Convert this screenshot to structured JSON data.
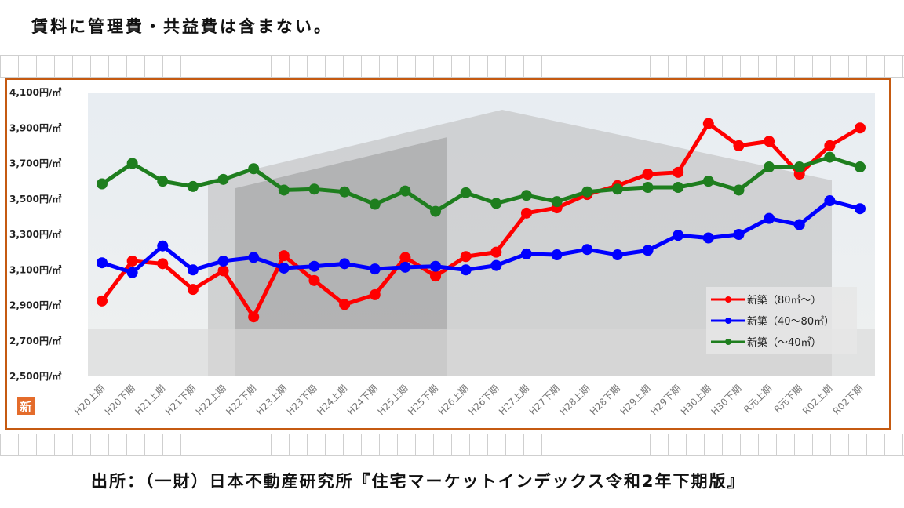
{
  "header": {
    "note": "賃料に管理費・共益費は含まない。"
  },
  "footer": {
    "source": "出所：（一財）日本不動産研究所『住宅マーケットインデックス令和2年下期版』"
  },
  "logo": {
    "char": "新",
    "color": "#e46c2b"
  },
  "chart_data": {
    "type": "line",
    "title": "",
    "xlabel": "",
    "ylabel": "",
    "ylim": [
      2500,
      4100
    ],
    "ytick_values": [
      2500,
      2700,
      2900,
      3100,
      3300,
      3500,
      3700,
      3900,
      4100
    ],
    "ytick_labels": [
      "2,500円/㎡",
      "2,700円/㎡",
      "2,900円/㎡",
      "3,100円/㎡",
      "3,300円/㎡",
      "3,500円/㎡",
      "3,700円/㎡",
      "3,900円/㎡",
      "4,100円/㎡"
    ],
    "categories": [
      "H20上期",
      "H20下期",
      "H21上期",
      "H21下期",
      "H22上期",
      "H22下期",
      "H23上期",
      "H23下期",
      "H24上期",
      "H24下期",
      "H25上期",
      "H25下期",
      "H26上期",
      "H26下期",
      "H27上期",
      "H27下期",
      "H28上期",
      "H28下期",
      "H29上期",
      "H29下期",
      "H30上期",
      "H30下期",
      "R元上期",
      "R元下期",
      "R02上期",
      "R02下期"
    ],
    "grid": false,
    "legend_position": "bottom-right",
    "series": [
      {
        "name": "新築（80㎡～）",
        "color": "#ff0000",
        "values": [
          2925,
          3150,
          3135,
          2990,
          3095,
          2835,
          3180,
          3040,
          2905,
          2960,
          3170,
          3065,
          3175,
          3200,
          3420,
          3450,
          3525,
          3575,
          3640,
          3650,
          3925,
          3800,
          3825,
          3640,
          3800,
          3900
        ]
      },
      {
        "name": "新築（40～80㎡）",
        "color": "#0000ff",
        "values": [
          3140,
          3085,
          3235,
          3100,
          3150,
          3170,
          3110,
          3120,
          3135,
          3105,
          3115,
          3120,
          3100,
          3125,
          3190,
          3185,
          3215,
          3185,
          3210,
          3295,
          3280,
          3300,
          3390,
          3355,
          3490,
          3445
        ]
      },
      {
        "name": "新築（～40㎡）",
        "color": "#1e7e1e",
        "values": [
          3585,
          3700,
          3600,
          3570,
          3610,
          3670,
          3550,
          3555,
          3540,
          3470,
          3545,
          3430,
          3535,
          3475,
          3520,
          3485,
          3540,
          3555,
          3565,
          3565,
          3600,
          3550,
          3680,
          3680,
          3735,
          3680
        ]
      }
    ]
  }
}
